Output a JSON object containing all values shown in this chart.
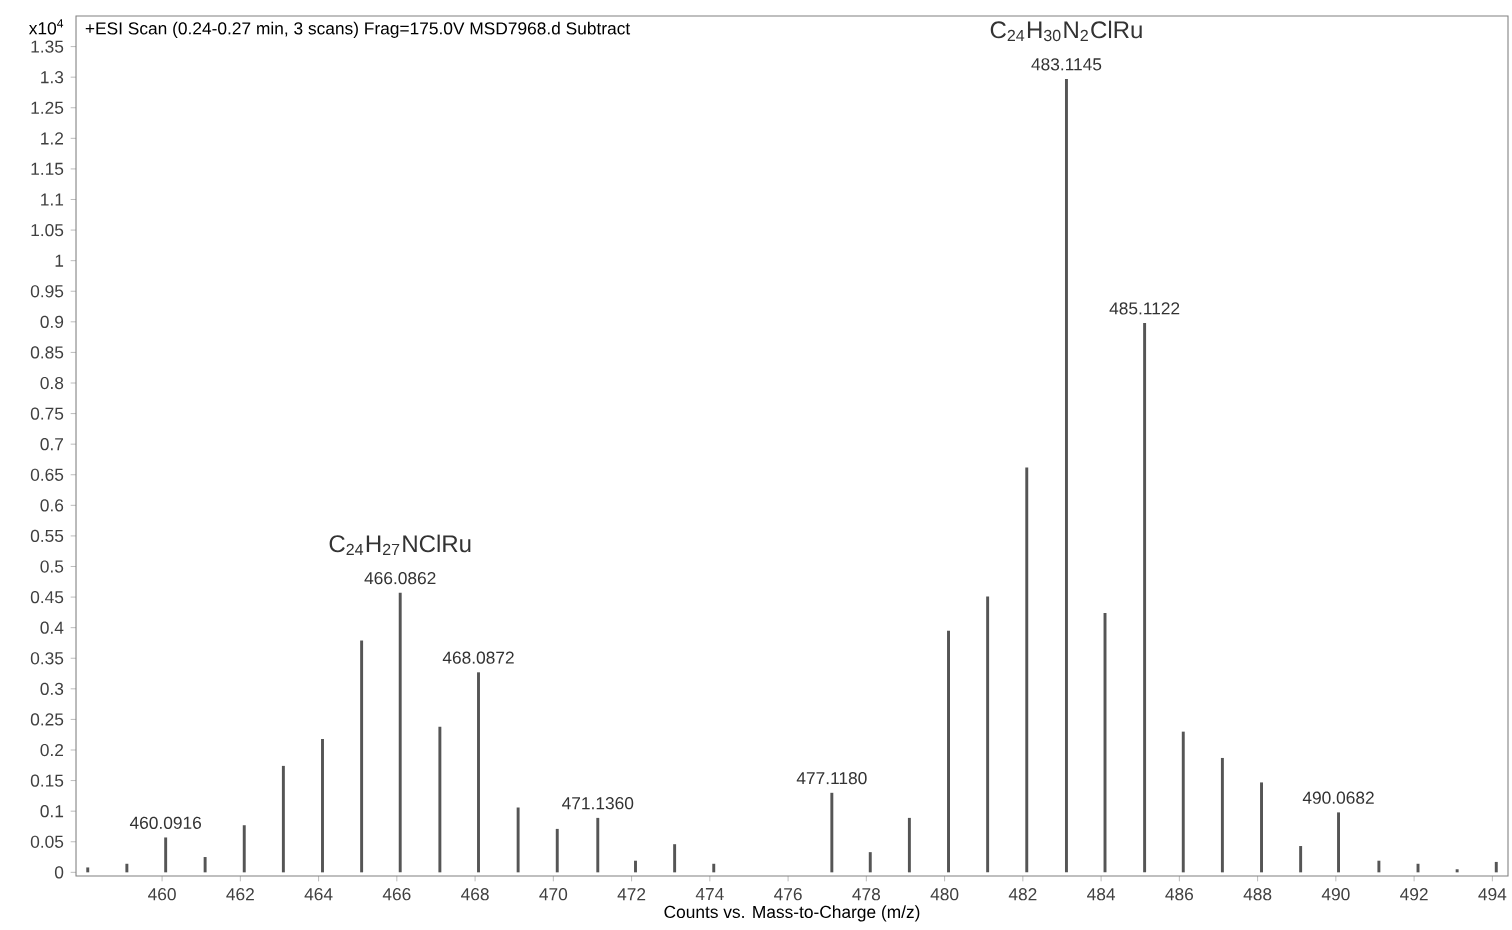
{
  "chart_data": {
    "type": "bar",
    "title": "+ESI Scan (0.24-0.27 min, 3 scans) Frag=175.0V MSD7968.d  Subtract",
    "xlabel": "Counts vs. Mass-to-Charge (m/z)",
    "ylabel": "x10$^{4}$",
    "x": [
      458.1,
      459.1,
      460.0916,
      461.1,
      462.1,
      463.1,
      464.1,
      465.1,
      466.0862,
      467.1,
      468.0872,
      469.1,
      470.1,
      471.136,
      472.1,
      473.1,
      474.1,
      477.118,
      478.1,
      479.1,
      480.1,
      481.1,
      482.1,
      483.1145,
      484.1,
      485.1122,
      486.1,
      487.1,
      488.1,
      489.1,
      490.0682,
      491.1,
      492.1,
      493.1,
      494.1
    ],
    "values": [
      0.008,
      0.014,
      0.057,
      0.025,
      0.077,
      0.174,
      0.218,
      0.379,
      0.457,
      0.238,
      0.327,
      0.106,
      0.071,
      0.089,
      0.019,
      0.046,
      0.014,
      0.13,
      0.033,
      0.089,
      0.395,
      0.451,
      0.662,
      1.297,
      0.424,
      0.898,
      0.23,
      0.187,
      0.147,
      0.043,
      0.098,
      0.019,
      0.014,
      0.005,
      0.017
    ],
    "color": "#555555",
    "xlim": [
      457.8,
      494.4
    ],
    "ylim": [
      -0.006,
      1.4
    ],
    "xticks": [
      460,
      462,
      464,
      466,
      468,
      470,
      472,
      474,
      476,
      478,
      480,
      482,
      484,
      486,
      488,
      490,
      492,
      494
    ],
    "yticks": [
      0,
      0.05,
      0.1,
      0.15,
      0.2,
      0.25,
      0.3,
      0.35,
      0.4,
      0.45,
      0.5,
      0.55,
      0.6,
      0.65,
      0.7,
      0.75,
      0.8,
      0.85,
      0.9,
      0.95,
      1,
      1.05,
      1.1,
      1.15,
      1.2,
      1.25,
      1.3,
      1.35
    ],
    "annotations": [
      {
        "text": "460.0916",
        "x": 460.0916,
        "y": 0.057
      },
      {
        "text": "466.0862",
        "x": 466.0862,
        "y": 0.457
      },
      {
        "text": "C$_{24}$H$_{27}$NClRu",
        "x": 466.0862,
        "y": 0.457
      },
      {
        "text": "468.0872",
        "x": 468.0872,
        "y": 0.327
      },
      {
        "text": "471.1360",
        "x": 471.136,
        "y": 0.089
      },
      {
        "text": "477.1180",
        "x": 477.118,
        "y": 0.13
      },
      {
        "text": "483.1145",
        "x": 483.1145,
        "y": 1.297
      },
      {
        "text": "C$_{24}$H$_{30}$N$_{2}$ClRu",
        "x": 483.1145,
        "y": 1.297
      },
      {
        "text": "485.1122",
        "x": 485.1122,
        "y": 0.898
      },
      {
        "text": "490.0682",
        "x": 490.0682,
        "y": 0.098
      }
    ]
  }
}
